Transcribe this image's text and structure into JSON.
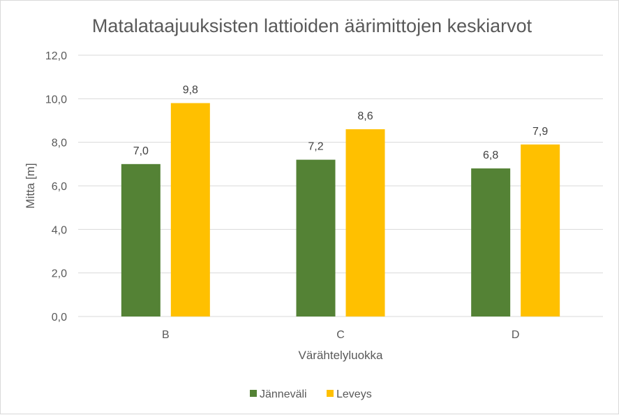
{
  "chart_data": {
    "type": "bar",
    "title": "Matalataajuuksisten lattioiden äärimittojen keskiarvot",
    "xlabel": "Värähtelyluokka",
    "ylabel": "Mitta [m]",
    "categories": [
      "B",
      "C",
      "D"
    ],
    "series": [
      {
        "name": "Jänneväli",
        "values": [
          7.0,
          7.2,
          6.8
        ],
        "labels": [
          "7,0",
          "7,2",
          "6,8"
        ],
        "color": "#548235"
      },
      {
        "name": "Leveys",
        "values": [
          9.8,
          8.6,
          7.9
        ],
        "labels": [
          "9,8",
          "8,6",
          "7,9"
        ],
        "color": "#FFC000"
      }
    ],
    "ylim": [
      0,
      12
    ],
    "yticks": [
      0,
      2,
      4,
      6,
      8,
      10,
      12
    ],
    "ytick_labels": [
      "0,0",
      "2,0",
      "4,0",
      "6,0",
      "8,0",
      "10,0",
      "12,0"
    ],
    "grid": true,
    "legend_position": "bottom",
    "colors": {
      "gridline": "#d9d9d9",
      "text": "#595959"
    }
  }
}
